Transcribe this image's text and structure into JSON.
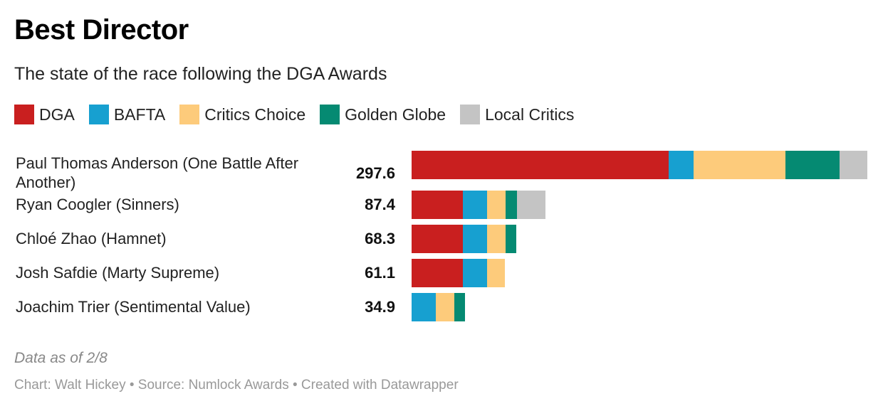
{
  "title": "Best Director",
  "subtitle": "The state of the race following the DGA Awards",
  "legend": [
    {
      "label": "DGA",
      "color": "#c91f1f"
    },
    {
      "label": "BAFTA",
      "color": "#17a0d0"
    },
    {
      "label": "Critics Choice",
      "color": "#fdcb7b"
    },
    {
      "label": "Golden Globe",
      "color": "#058a72"
    },
    {
      "label": "Local Critics",
      "color": "#c4c4c4"
    }
  ],
  "chart_data": {
    "type": "bar",
    "orientation": "horizontal",
    "stacked": true,
    "title": "Best Director",
    "subtitle": "The state of the race following the DGA Awards",
    "categories": [
      "Paul Thomas Anderson (One Battle After Another)",
      "Ryan Coogler (Sinners)",
      "Chloé Zhao (Hamnet)",
      "Josh Safdie (Marty Supreme)",
      "Joachim Trier (Sentimental Value)"
    ],
    "totals": [
      "297.6",
      "87.4",
      "68.3",
      "61.1",
      "34.9"
    ],
    "series": [
      {
        "name": "DGA",
        "color": "#c91f1f",
        "values": [
          168,
          33.5,
          33.5,
          33.5,
          0
        ]
      },
      {
        "name": "BAFTA",
        "color": "#17a0d0",
        "values": [
          16,
          16,
          16,
          16,
          16
        ]
      },
      {
        "name": "Critics Choice",
        "color": "#fdcb7b",
        "values": [
          60,
          12,
          12,
          11.6,
          12
        ]
      },
      {
        "name": "Golden Globe",
        "color": "#058a72",
        "values": [
          35.6,
          7.4,
          6.8,
          0,
          6.9
        ]
      },
      {
        "name": "Local Critics",
        "color": "#c4c4c4",
        "values": [
          18,
          18.5,
          0,
          0,
          0
        ]
      }
    ],
    "xlim": [
      0,
      297.6
    ]
  },
  "note": "Data as of 2/8",
  "source": "Chart: Walt Hickey • Source: Numlock Awards • Created with Datawrapper"
}
